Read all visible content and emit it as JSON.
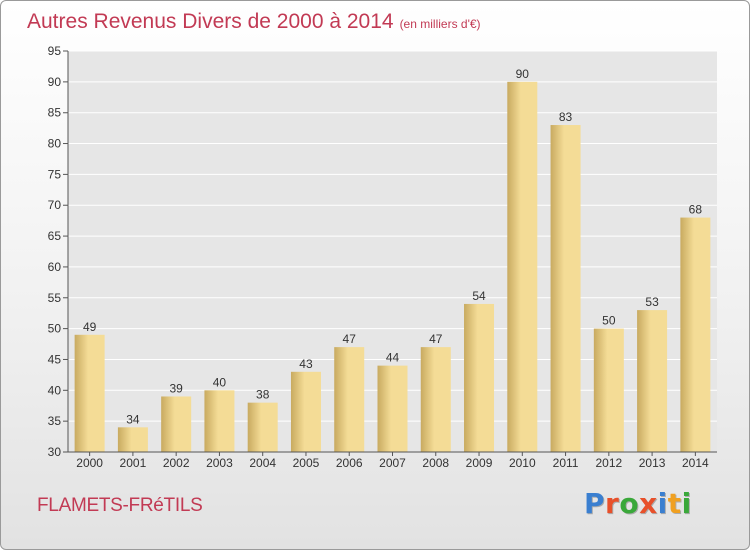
{
  "title": "Autres Revenus Divers de 2000 à 2014",
  "subtitle": "(en milliers d'€)",
  "location": "FLAMETS-FRéTILS",
  "logo": {
    "text": "Proxiti",
    "letter_colors": [
      "#3a7fd0",
      "#e8502a",
      "#3aa83a",
      "#e8502a",
      "#3a7fd0",
      "#f0a020",
      "#3aa83a"
    ]
  },
  "colors": {
    "bar_light": "#f4dc96",
    "bar_dark": "#c8aa60",
    "plot_bg": "#e6e6e6",
    "grid": "#ffffff",
    "title": "#c23a54",
    "text": "#333333"
  },
  "chart_data": {
    "type": "bar",
    "categories": [
      "2000",
      "2001",
      "2002",
      "2003",
      "2004",
      "2005",
      "2006",
      "2007",
      "2008",
      "2009",
      "2010",
      "2011",
      "2012",
      "2013",
      "2014"
    ],
    "values": [
      49,
      34,
      39,
      40,
      38,
      43,
      47,
      44,
      47,
      54,
      90,
      83,
      50,
      53,
      68
    ],
    "title": "Autres Revenus Divers de 2000 à 2014",
    "xlabel": "",
    "ylabel": "",
    "ylim": [
      30,
      95
    ],
    "yticks": [
      30,
      35,
      40,
      45,
      50,
      55,
      60,
      65,
      70,
      75,
      80,
      85,
      90,
      95
    ],
    "grid": true,
    "data_labels": true
  }
}
